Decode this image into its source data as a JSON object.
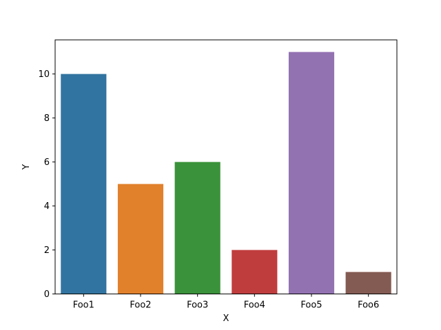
{
  "chart_data": {
    "type": "bar",
    "categories": [
      "Foo1",
      "Foo2",
      "Foo3",
      "Foo4",
      "Foo5",
      "Foo6"
    ],
    "values": [
      10,
      5,
      6,
      2,
      11,
      1
    ],
    "colors": [
      "#3274a1",
      "#e1812c",
      "#3a923a",
      "#c03d3e",
      "#9372b2",
      "#845b53"
    ],
    "title": "",
    "xlabel": "X",
    "ylabel": "Y",
    "ylim": [
      0,
      11.55
    ],
    "yticks": [
      0,
      2,
      4,
      6,
      8,
      10
    ],
    "grid": false,
    "legend": "none"
  }
}
